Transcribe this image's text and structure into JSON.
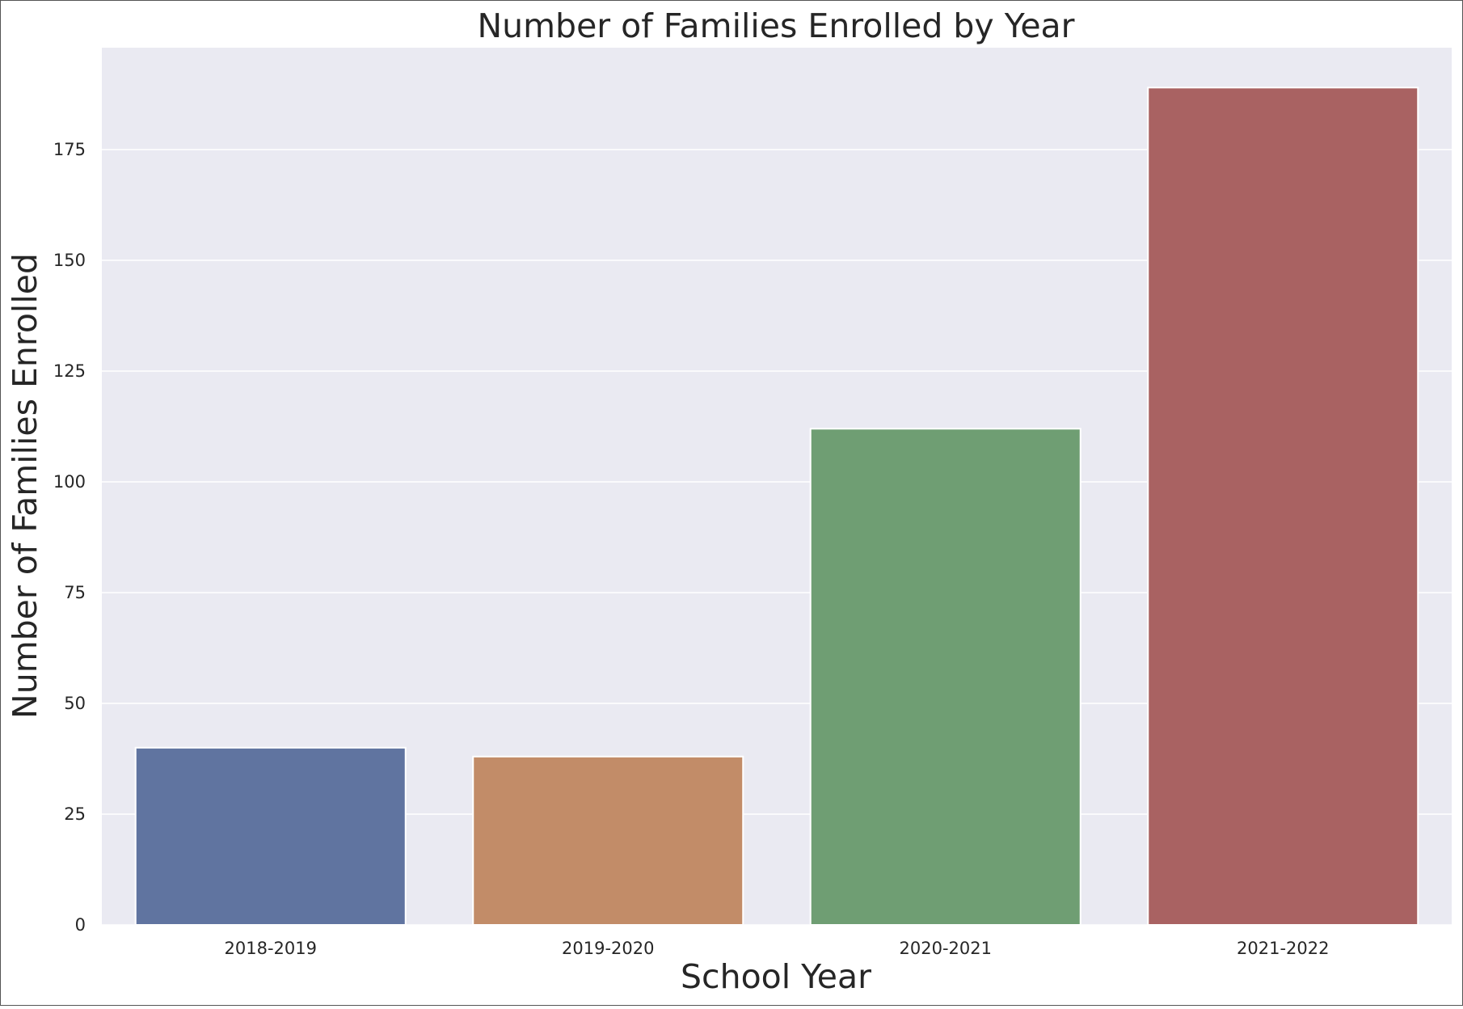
{
  "chart_data": {
    "type": "bar",
    "title": "Number of Families Enrolled by Year",
    "xlabel": "School Year",
    "ylabel": "Number of Families Enrolled",
    "categories": [
      "2018-2019",
      "2019-2020",
      "2020-2021",
      "2021-2022"
    ],
    "values": [
      40,
      38,
      112,
      189
    ],
    "ylim": [
      0,
      198
    ],
    "yticks": [
      0,
      25,
      50,
      75,
      100,
      125,
      150,
      175
    ],
    "grid": true,
    "legend": "none",
    "colors": [
      "#6074a0",
      "#c28c68",
      "#6f9e73",
      "#a96262"
    ],
    "background": "#eaeaf2",
    "grid_color": "#ffffff"
  }
}
